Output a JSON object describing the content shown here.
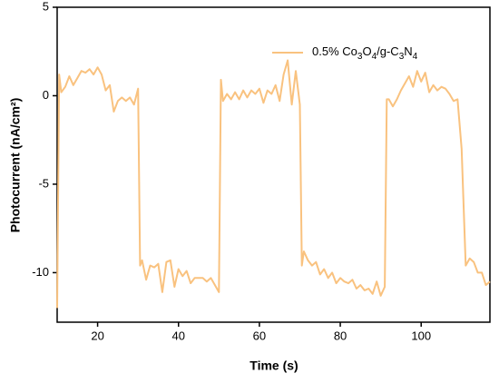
{
  "chart_data": {
    "type": "line",
    "xlabel": "Time (s)",
    "ylabel": "Photocurrent (nA/cm²)",
    "x": [
      10,
      10.5,
      11,
      12,
      13,
      14,
      15,
      16,
      17,
      18,
      19,
      20,
      21,
      22,
      23,
      24,
      25,
      26,
      27,
      28,
      29,
      30,
      30.5,
      31,
      32,
      33,
      34,
      35,
      36,
      37,
      38,
      39,
      40,
      41,
      42,
      43,
      44,
      45,
      46,
      47,
      48,
      49,
      50,
      50.5,
      51,
      52,
      53,
      54,
      55,
      56,
      57,
      58,
      59,
      60,
      61,
      62,
      63,
      64,
      65,
      66,
      67,
      68,
      69,
      70,
      70.5,
      71,
      72,
      73,
      74,
      75,
      76,
      77,
      78,
      79,
      80,
      81,
      82,
      83,
      84,
      85,
      86,
      87,
      88,
      89,
      90,
      91,
      91.5,
      92,
      93,
      94,
      95,
      96,
      97,
      98,
      99,
      100,
      101,
      102,
      103,
      104,
      105,
      106,
      107,
      108,
      109,
      110,
      111,
      112,
      113,
      114,
      115,
      116,
      117
    ],
    "series": [
      {
        "name": "0.5% Co3O4/g-C3N4",
        "color": "#f9c27f",
        "values": [
          -12,
          1.2,
          0.2,
          0.5,
          1.1,
          0.6,
          1.0,
          1.4,
          1.3,
          1.5,
          1.2,
          1.6,
          1.2,
          0.3,
          0.6,
          -0.9,
          -0.3,
          -0.1,
          -0.3,
          -0.1,
          -0.5,
          0.4,
          -9.6,
          -9.3,
          -10.4,
          -9.6,
          -9.7,
          -9.5,
          -11.1,
          -9.4,
          -9.3,
          -10.8,
          -9.8,
          -10.2,
          -9.9,
          -10.6,
          -10.3,
          -10.3,
          -10.3,
          -10.5,
          -10.3,
          -10.7,
          -11.1,
          0.9,
          -0.3,
          0.1,
          -0.2,
          0.2,
          -0.2,
          0.3,
          -0.1,
          0.3,
          0.1,
          0.4,
          -0.4,
          0.3,
          0.1,
          0.6,
          -0.3,
          1.2,
          2.0,
          -0.5,
          1.4,
          -0.5,
          -9.6,
          -8.8,
          -9.3,
          -9.6,
          -9.4,
          -10.1,
          -9.8,
          -10.3,
          -10.0,
          -10.6,
          -10.3,
          -10.5,
          -10.6,
          -10.4,
          -10.9,
          -10.7,
          -11.0,
          -10.9,
          -11.2,
          -10.5,
          -11.3,
          -10.8,
          -0.2,
          -0.2,
          -0.6,
          -0.2,
          0.3,
          0.7,
          1.1,
          0.5,
          1.4,
          0.8,
          1.3,
          0.2,
          0.6,
          0.3,
          0.5,
          0.4,
          0.1,
          -0.3,
          -0.2,
          -3,
          -9.6,
          -9.2,
          -9.4,
          -10.0,
          -10.0,
          -10.7,
          -10.5
        ]
      }
    ],
    "xlim": [
      10,
      117
    ],
    "ylim": [
      -12.8,
      5
    ],
    "xticks": [
      20,
      40,
      60,
      80,
      100
    ],
    "yticks": [
      -10,
      -5,
      0,
      5
    ],
    "legend": "upper right"
  }
}
